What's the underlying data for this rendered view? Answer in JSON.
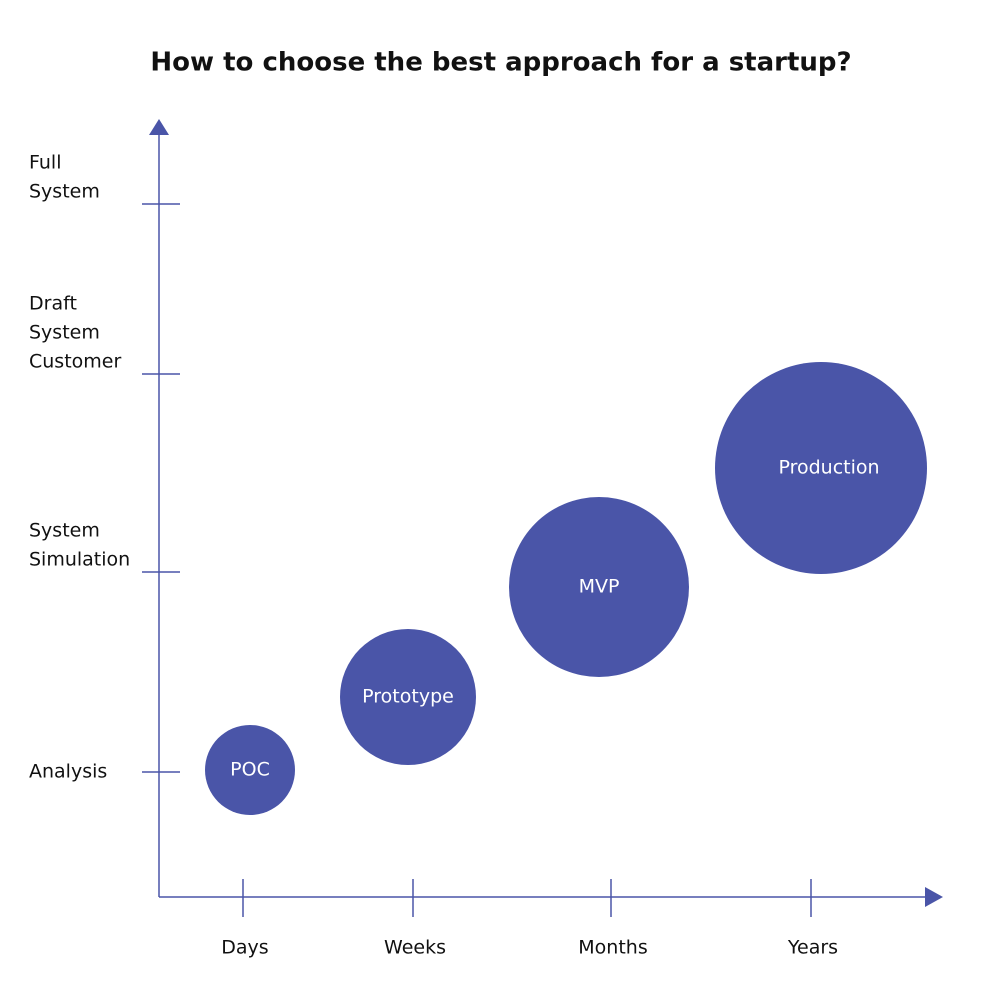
{
  "title": "How to choose the best approach for a startup?",
  "y_levels": [
    {
      "lines": [
        "Analysis"
      ]
    },
    {
      "lines": [
        "System",
        "Simulation"
      ]
    },
    {
      "lines": [
        "Draft",
        "System",
        "Customer"
      ]
    },
    {
      "lines": [
        "Full",
        "System"
      ]
    }
  ],
  "x_levels": [
    "Days",
    "Weeks",
    "Months",
    "Years"
  ],
  "nodes": [
    {
      "label": "POC"
    },
    {
      "label": "Prototype"
    },
    {
      "label": "MVP"
    },
    {
      "label": "Production"
    }
  ]
}
